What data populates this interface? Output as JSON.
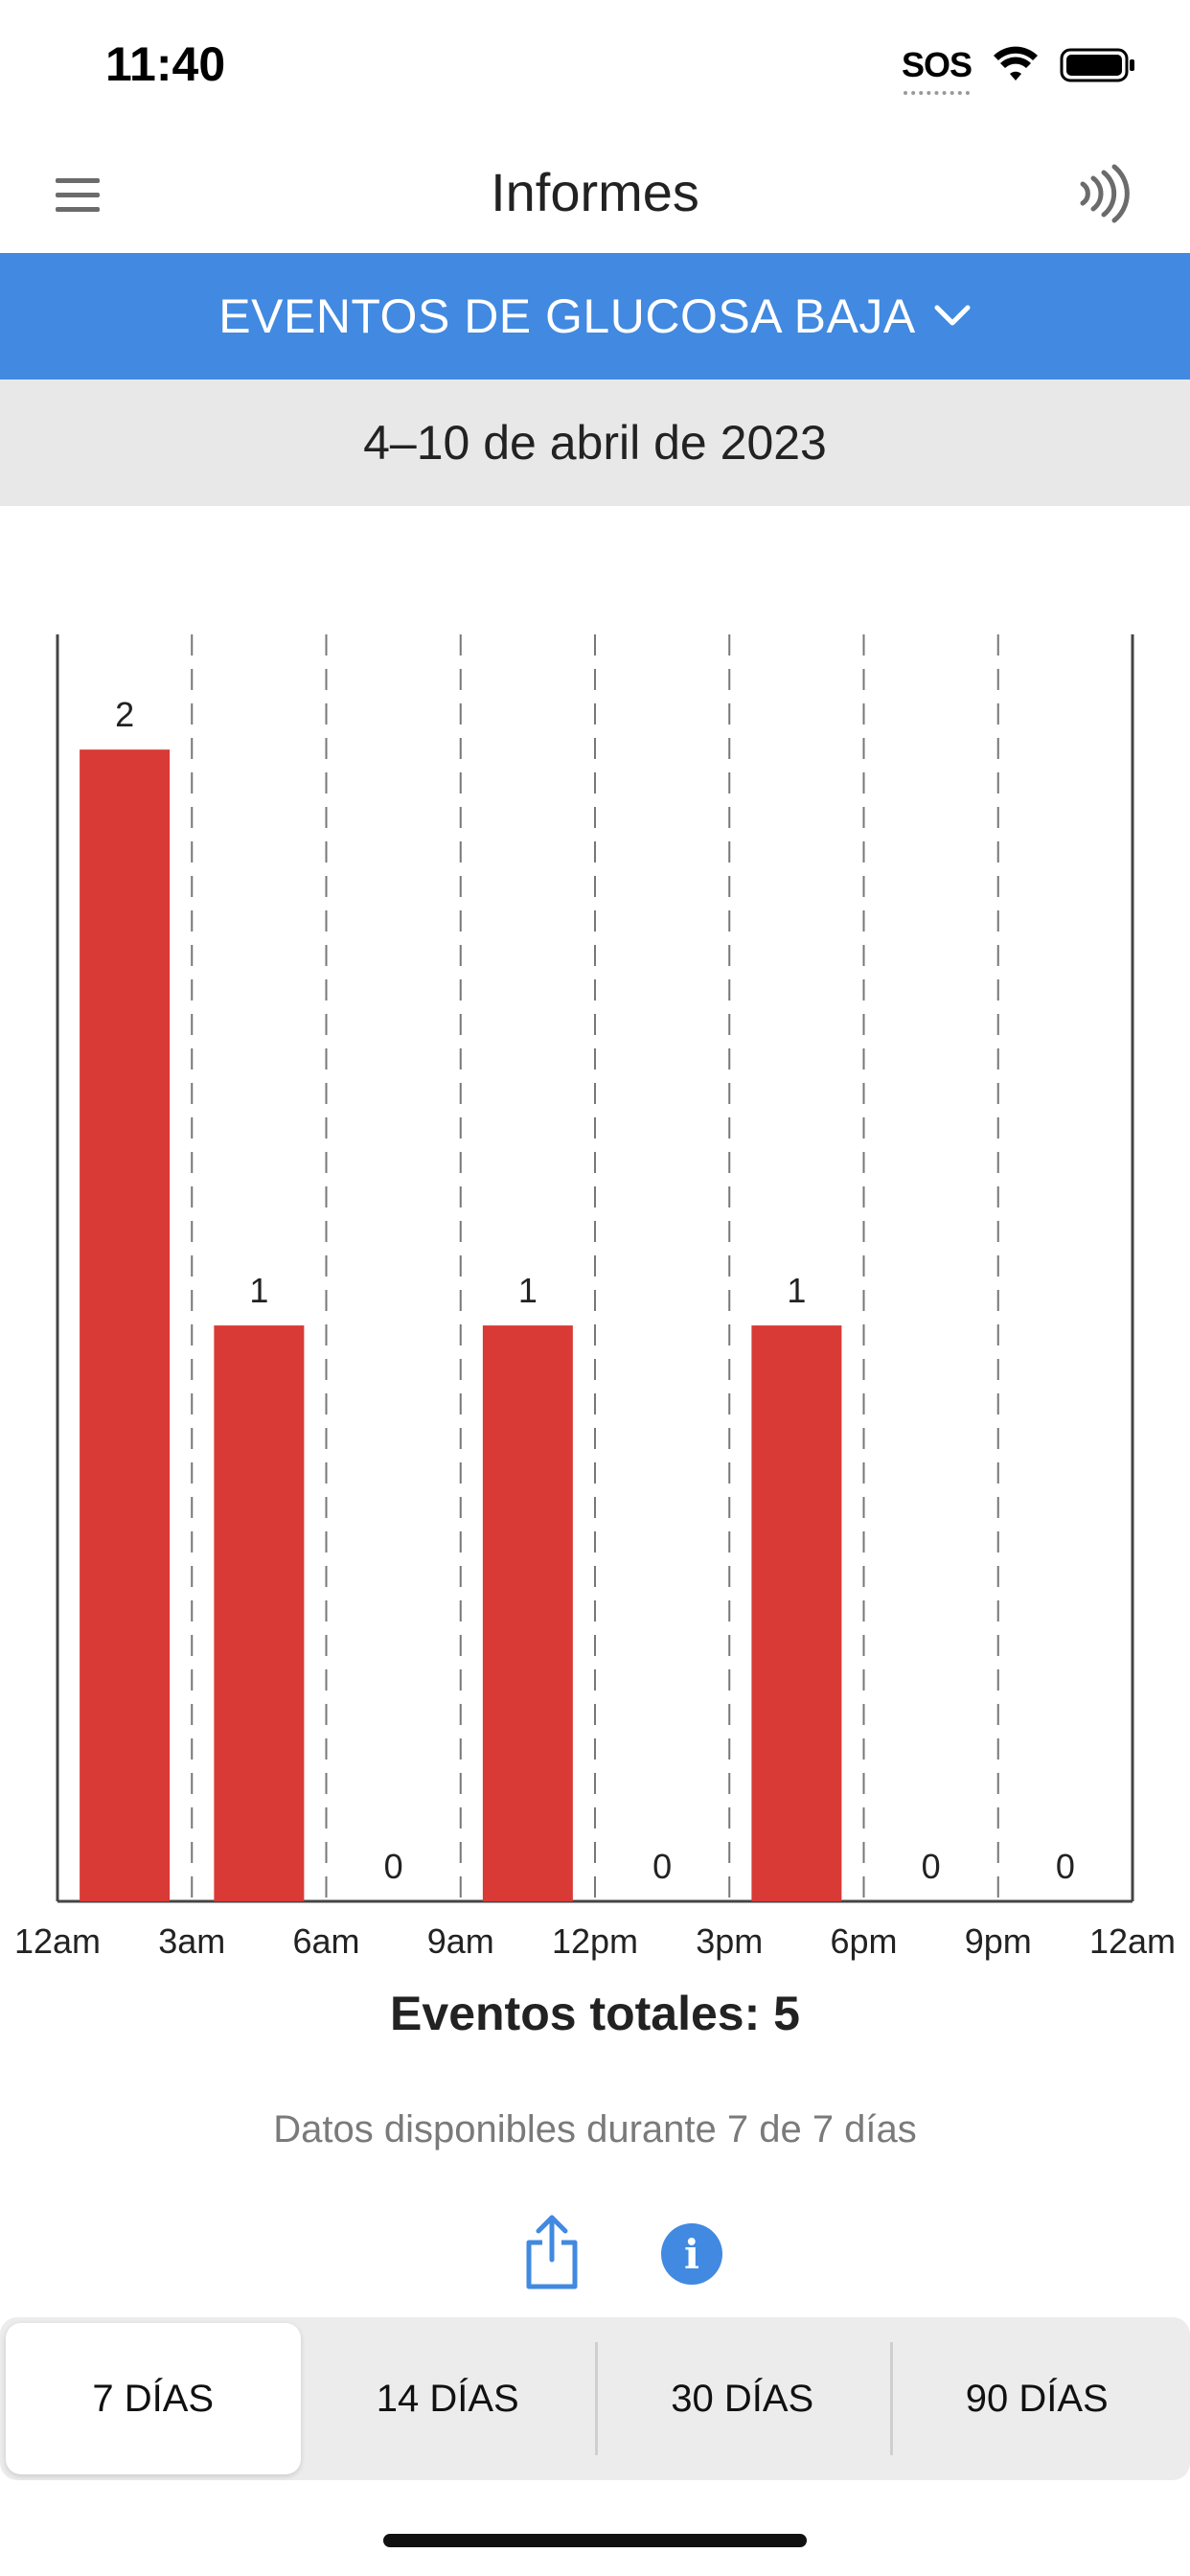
{
  "status_bar": {
    "time": "11:40",
    "sos": "SOS",
    "icons": [
      "wifi-icon",
      "battery-icon"
    ]
  },
  "header": {
    "title": "Informes",
    "left_icon": "hamburger-menu-icon",
    "right_icon": "nfc-scan-icon"
  },
  "banner": {
    "label": "EVENTOS DE GLUCOSA BAJA",
    "icon": "chevron-down-icon",
    "color": "#4189e1"
  },
  "date_range": "4–10 de abril de 2023",
  "chart_data": {
    "type": "bar",
    "categories": [
      "12am-3am",
      "3am-6am",
      "6am-9am",
      "9am-12pm",
      "12pm-3pm",
      "3pm-6pm",
      "6pm-9pm",
      "9pm-12am"
    ],
    "x_tick_labels": [
      "12am",
      "3am",
      "6am",
      "9am",
      "12pm",
      "3pm",
      "6pm",
      "9pm",
      "12am"
    ],
    "values": [
      2,
      1,
      0,
      1,
      0,
      1,
      0,
      0
    ],
    "data_labels": [
      "2",
      "1",
      "0",
      "1",
      "0",
      "1",
      "0",
      "0"
    ],
    "ylim": [
      0,
      2.2
    ],
    "bar_color": "#d93a35",
    "grid": "dashed vertical separators"
  },
  "summary": {
    "total": "Eventos totales: 5",
    "availability": "Datos disponibles durante 7 de 7 días"
  },
  "actions": {
    "share_icon": "share-icon",
    "info_icon": "info-icon",
    "info_glyph": "i"
  },
  "segments": {
    "items": [
      {
        "label": "7 DÍAS",
        "active": true
      },
      {
        "label": "14 DÍAS",
        "active": false
      },
      {
        "label": "30 DÍAS",
        "active": false
      },
      {
        "label": "90 DÍAS",
        "active": false
      }
    ]
  }
}
